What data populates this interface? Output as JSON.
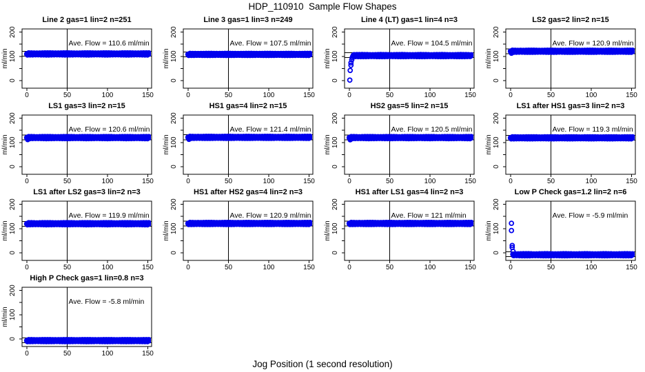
{
  "chart_data": {
    "type": "scatter",
    "title": "HDP_110910  Sample Flow Shapes",
    "xlabel": "Jog Position (1 second resolution)",
    "ylabel": "ml/min",
    "layout": {
      "rows": 4,
      "cols": 4,
      "grid": "off",
      "legend": "none"
    },
    "x_ticks": [
      0,
      50,
      100,
      150
    ],
    "y_ticks_labeled": [
      0,
      100,
      200
    ],
    "y_ticks_all": [
      0,
      50,
      100,
      150,
      200
    ],
    "x_range": [
      -6,
      158
    ],
    "y_range": [
      -31,
      213
    ],
    "vline_x": 50,
    "ref_line_offset": 10,
    "colors": {
      "point": "#0000EE",
      "axis": "#000000",
      "background": "#ffffff"
    },
    "panels": [
      {
        "title": "Line 2 gas=1 lin=2 n=251",
        "ave": 110.6,
        "ave_label": "Ave. Flow =  110.6  ml/min",
        "band": {
          "y": 110,
          "x0": 0,
          "x1": 152.5
        },
        "transient": []
      },
      {
        "title": "Line 3 gas=1 lin=3 n=249",
        "ave": 107.5,
        "ave_label": "Ave. Flow =  107.5  ml/min",
        "band": {
          "y": 108,
          "x0": 0,
          "x1": 152.5
        },
        "transient": []
      },
      {
        "title": "Line 4 (LT) gas=1 lin=4 n=3",
        "ave": 104.5,
        "ave_label": "Ave. Flow =  104.5  ml/min",
        "band": {
          "y": 103,
          "x0": 4.5,
          "x1": 152.5
        },
        "transient": [
          [
            0.5,
            2
          ],
          [
            1,
            42
          ],
          [
            2,
            63
          ],
          [
            2,
            73
          ],
          [
            3,
            86
          ],
          [
            3.5,
            95
          ]
        ]
      },
      {
        "title": "LS2 gas=2 lin=2 n=15",
        "ave": 120.9,
        "ave_label": "Ave. Flow =  120.9  ml/min",
        "band": {
          "y": 121,
          "x0": 0,
          "x1": 152.5
        },
        "transient": [
          [
            1,
            113
          ]
        ]
      },
      {
        "title": "LS1 gas=3 lin=2 n=15",
        "ave": 120.6,
        "ave_label": "Ave. Flow =  120.6  ml/min",
        "band": {
          "y": 120,
          "x0": 0,
          "x1": 152.5
        },
        "transient": [
          [
            1,
            112
          ]
        ]
      },
      {
        "title": "HS1 gas=4 lin=2 n=15",
        "ave": 121.4,
        "ave_label": "Ave. Flow =  121.4  ml/min",
        "band": {
          "y": 121,
          "x0": 0,
          "x1": 152.5
        },
        "transient": [
          [
            1,
            113
          ]
        ]
      },
      {
        "title": "HS2 gas=5 lin=2 n=15",
        "ave": 120.5,
        "ave_label": "Ave. Flow =  120.5  ml/min",
        "band": {
          "y": 120,
          "x0": 0,
          "x1": 152.5
        },
        "transient": [
          [
            1,
            111
          ]
        ]
      },
      {
        "title": "LS1 after HS1 gas=3 lin=2 n=3",
        "ave": 119.3,
        "ave_label": "Ave. Flow =  119.3  ml/min",
        "band": {
          "y": 119,
          "x0": 0,
          "x1": 152.5
        },
        "transient": []
      },
      {
        "title": "LS1 after LS2 gas=3 lin=2 n=3",
        "ave": 119.9,
        "ave_label": "Ave. Flow =  119.9  ml/min",
        "band": {
          "y": 120,
          "x0": 0,
          "x1": 152.5
        },
        "transient": []
      },
      {
        "title": "HS1 after HS2 gas=4 lin=2 n=3",
        "ave": 120.9,
        "ave_label": "Ave. Flow =  120.9  ml/min",
        "band": {
          "y": 121,
          "x0": 0,
          "x1": 152.5
        },
        "transient": []
      },
      {
        "title": "HS1 after LS1 gas=4 lin=2 n=3",
        "ave": 121,
        "ave_label": "Ave. Flow =  121  ml/min",
        "band": {
          "y": 121,
          "x0": 0,
          "x1": 152.5
        },
        "transient": []
      },
      {
        "title": "Low P Check gas=1.2 lin=2 n=6",
        "ave": -5.9,
        "ave_label": "Ave. Flow =  -5.9  ml/min",
        "band": {
          "y": -8,
          "x0": 3,
          "x1": 152.5
        },
        "transient": [
          [
            1,
            122
          ],
          [
            1,
            92
          ],
          [
            2,
            30
          ],
          [
            2,
            22
          ],
          [
            3,
            6
          ]
        ]
      },
      {
        "title": "High P Check gas=1 lin=0.8 n=3",
        "ave": -5.8,
        "ave_label": "Ave. Flow =  -5.8  ml/min",
        "band": {
          "y": -7,
          "x0": 0,
          "x1": 152.5
        },
        "transient": []
      }
    ]
  }
}
